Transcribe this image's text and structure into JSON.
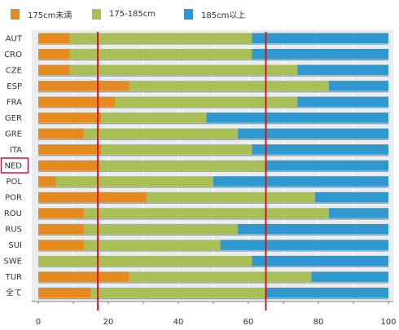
{
  "chart_data": {
    "type": "bar",
    "orientation": "horizontal",
    "stacked": true,
    "title": "",
    "xlabel": "",
    "ylabel": "",
    "xlim": [
      0,
      100
    ],
    "xticks": [
      "0",
      "20",
      "40",
      "60",
      "80",
      "100"
    ],
    "grid": true,
    "legend_position": "top",
    "categories": [
      "AUT",
      "CRO",
      "CZE",
      "ESP",
      "FRA",
      "GER",
      "GRE",
      "ITA",
      "NED",
      "POL",
      "POR",
      "ROU",
      "RUS",
      "SUI",
      "SWE",
      "TUR",
      "全て"
    ],
    "highlighted_category": "NED",
    "series": [
      {
        "name": "175cm未満",
        "color": "#e58a1f",
        "values": [
          9,
          9,
          9,
          26,
          22,
          18,
          13,
          18,
          17,
          5,
          31,
          13,
          13,
          13,
          0,
          26,
          15
        ]
      },
      {
        "name": "175-185cm",
        "color": "#a9bf55",
        "values": [
          52,
          52,
          65,
          57,
          52,
          30,
          44,
          43,
          48,
          45,
          48,
          70,
          44,
          39,
          61,
          52,
          50
        ]
      },
      {
        "name": "185cm以上",
        "color": "#2e98cf",
        "values": [
          39,
          39,
          26,
          17,
          26,
          52,
          43,
          39,
          35,
          50,
          21,
          17,
          43,
          48,
          39,
          22,
          35
        ]
      }
    ],
    "reference_lines": [
      {
        "value": 17,
        "color": "#d9121f"
      },
      {
        "value": 65,
        "color": "#d9121f"
      }
    ]
  }
}
